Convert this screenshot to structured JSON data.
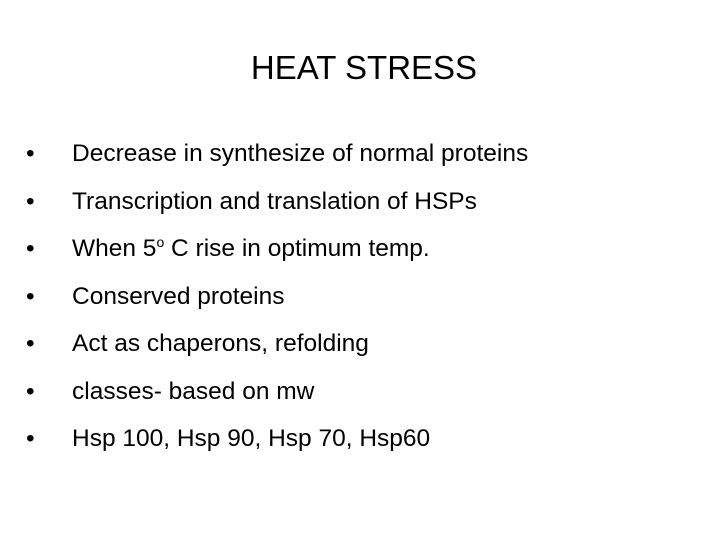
{
  "header": {
    "title": "HEAT STRESS"
  },
  "bullets": [
    {
      "text": "Decrease in synthesize of normal proteins"
    },
    {
      "text": "Transcription and translation of HSPs"
    },
    {
      "text": "When 5",
      "superscript": "o",
      "after": " C rise in optimum temp."
    },
    {
      "text": "Conserved proteins"
    },
    {
      "text": "Act as chaperons, refolding"
    },
    {
      "text": "classes- based on mw"
    },
    {
      "text": "Hsp 100, Hsp 90, Hsp 70, Hsp60"
    }
  ]
}
